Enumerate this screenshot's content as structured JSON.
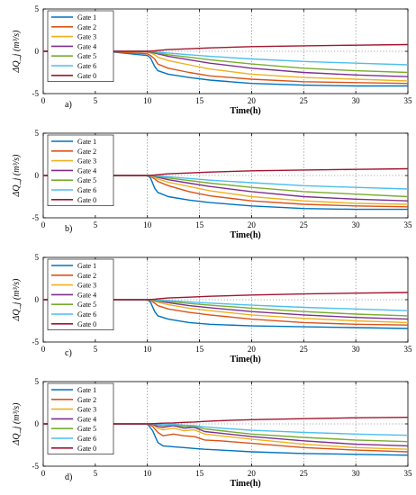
{
  "chart_data": [
    {
      "type": "line",
      "panel_label": "a)",
      "xlabel": "Time(h)",
      "ylabel": "ΔQ_j (m³/s)",
      "xlim": [
        0,
        35
      ],
      "ylim": [
        -5,
        5
      ],
      "xticks": [
        "0",
        "5",
        "10",
        "15",
        "20",
        "25",
        "30",
        "35"
      ],
      "yticks": [
        "-5",
        "0",
        "5"
      ],
      "vgrid_x": [
        10,
        15,
        20,
        25,
        30
      ],
      "hgrid_y": [
        0
      ],
      "legend": "top-left",
      "x": [
        0,
        6,
        10,
        10.3,
        10.7,
        11,
        12,
        14,
        16,
        20,
        25,
        30,
        35
      ],
      "series": [
        {
          "name": "Gate 1",
          "color": "#0072BD",
          "values": [
            0,
            0,
            -0.5,
            -0.8,
            -1.8,
            -2.3,
            -2.7,
            -3.1,
            -3.4,
            -3.8,
            -4.0,
            -4.1,
            -4.1
          ]
        },
        {
          "name": "Gate 2",
          "color": "#D95319",
          "values": [
            0,
            0,
            -0.3,
            -0.5,
            -0.9,
            -1.5,
            -2.0,
            -2.5,
            -2.9,
            -3.3,
            -3.6,
            -3.7,
            -3.8
          ]
        },
        {
          "name": "Gate 3",
          "color": "#EDB120",
          "values": [
            0,
            0,
            -0.1,
            -0.2,
            -0.4,
            -0.7,
            -1.1,
            -1.6,
            -2.1,
            -2.7,
            -3.1,
            -3.3,
            -3.5
          ]
        },
        {
          "name": "Gate 4",
          "color": "#7E2F8E",
          "values": [
            0,
            0,
            -0.05,
            -0.1,
            -0.2,
            -0.3,
            -0.6,
            -1.0,
            -1.4,
            -2.0,
            -2.5,
            -2.8,
            -3.0
          ]
        },
        {
          "name": "Gate 5",
          "color": "#77AC30",
          "values": [
            0,
            0,
            0,
            -0.05,
            -0.1,
            -0.2,
            -0.4,
            -0.7,
            -1.0,
            -1.5,
            -2.0,
            -2.3,
            -2.5
          ]
        },
        {
          "name": "Gate 6",
          "color": "#4DBEEE",
          "values": [
            0,
            0,
            0,
            0,
            -0.05,
            -0.1,
            -0.2,
            -0.4,
            -0.6,
            -0.9,
            -1.2,
            -1.4,
            -1.6
          ]
        },
        {
          "name": "Gate 0",
          "color": "#A2142F",
          "values": [
            0,
            0,
            0,
            0.02,
            0.05,
            0.1,
            0.2,
            0.3,
            0.4,
            0.55,
            0.65,
            0.72,
            0.8
          ]
        }
      ]
    },
    {
      "type": "line",
      "panel_label": "b)",
      "xlabel": "Time(h)",
      "ylabel": "ΔQ_j (m³/s)",
      "xlim": [
        0,
        35
      ],
      "ylim": [
        -5,
        5
      ],
      "xticks": [
        "0",
        "5",
        "10",
        "15",
        "20",
        "25",
        "30",
        "35"
      ],
      "yticks": [
        "-5",
        "0",
        "5"
      ],
      "vgrid_x": [
        10,
        15,
        20,
        25,
        30
      ],
      "hgrid_y": [
        0
      ],
      "legend": "top-left",
      "x": [
        0,
        6,
        10,
        10.3,
        10.7,
        11,
        12,
        14,
        16,
        20,
        25,
        30,
        35
      ],
      "series": [
        {
          "name": "Gate 1",
          "color": "#0072BD",
          "values": [
            0,
            0,
            0,
            -0.3,
            -1.5,
            -2.0,
            -2.5,
            -2.9,
            -3.2,
            -3.6,
            -3.9,
            -4.0,
            -4.0
          ]
        },
        {
          "name": "Gate 2",
          "color": "#D95319",
          "values": [
            0,
            0,
            0,
            -0.1,
            -0.4,
            -0.7,
            -1.2,
            -1.9,
            -2.4,
            -3.0,
            -3.4,
            -3.6,
            -3.7
          ]
        },
        {
          "name": "Gate 3",
          "color": "#EDB120",
          "values": [
            0,
            0,
            0,
            -0.05,
            -0.2,
            -0.4,
            -0.8,
            -1.3,
            -1.8,
            -2.5,
            -3.0,
            -3.3,
            -3.4
          ]
        },
        {
          "name": "Gate 4",
          "color": "#7E2F8E",
          "values": [
            0,
            0,
            0,
            0,
            -0.1,
            -0.2,
            -0.5,
            -0.9,
            -1.3,
            -1.9,
            -2.5,
            -2.8,
            -3.0
          ]
        },
        {
          "name": "Gate 5",
          "color": "#77AC30",
          "values": [
            0,
            0,
            0,
            0,
            -0.05,
            -0.1,
            -0.3,
            -0.6,
            -0.9,
            -1.4,
            -1.9,
            -2.2,
            -2.5
          ]
        },
        {
          "name": "Gate 6",
          "color": "#4DBEEE",
          "values": [
            0,
            0,
            0,
            0,
            0,
            -0.05,
            -0.15,
            -0.35,
            -0.55,
            -0.85,
            -1.2,
            -1.4,
            -1.6
          ]
        },
        {
          "name": "Gate 0",
          "color": "#A2142F",
          "values": [
            0,
            0,
            0,
            0.02,
            0.05,
            0.1,
            0.2,
            0.3,
            0.4,
            0.55,
            0.65,
            0.72,
            0.8
          ]
        }
      ]
    },
    {
      "type": "line",
      "panel_label": "c)",
      "xlabel": "Time(h)",
      "ylabel": "ΔQ_j (m³/s)",
      "xlim": [
        0,
        35
      ],
      "ylim": [
        -5,
        5
      ],
      "xticks": [
        "0",
        "5",
        "10",
        "15",
        "20",
        "25",
        "30",
        "35"
      ],
      "yticks": [
        "-5",
        "0",
        "5"
      ],
      "vgrid_x": [
        10,
        15,
        20,
        25,
        30
      ],
      "hgrid_y": [
        0
      ],
      "legend": "top-left",
      "x": [
        0,
        6,
        10,
        10.3,
        10.7,
        11,
        12,
        14,
        16,
        20,
        25,
        30,
        35
      ],
      "series": [
        {
          "name": "Gate 1",
          "color": "#0072BD",
          "values": [
            0,
            0,
            0,
            -0.3,
            -1.4,
            -1.9,
            -2.3,
            -2.7,
            -2.9,
            -3.1,
            -3.2,
            -3.3,
            -3.4
          ]
        },
        {
          "name": "Gate 2",
          "color": "#D95319",
          "values": [
            0,
            0,
            0,
            -0.1,
            -0.4,
            -0.7,
            -1.1,
            -1.5,
            -1.8,
            -2.3,
            -2.7,
            -2.9,
            -3.0
          ]
        },
        {
          "name": "Gate 3",
          "color": "#EDB120",
          "values": [
            0,
            0,
            0,
            -0.05,
            -0.2,
            -0.3,
            -0.6,
            -1.0,
            -1.3,
            -1.8,
            -2.2,
            -2.5,
            -2.7
          ]
        },
        {
          "name": "Gate 4",
          "color": "#7E2F8E",
          "values": [
            0,
            0,
            0,
            0,
            -0.1,
            -0.15,
            -0.35,
            -0.7,
            -0.95,
            -1.4,
            -1.8,
            -2.1,
            -2.3
          ]
        },
        {
          "name": "Gate 5",
          "color": "#77AC30",
          "values": [
            0,
            0,
            0,
            0,
            -0.05,
            -0.1,
            -0.2,
            -0.45,
            -0.65,
            -1.0,
            -1.4,
            -1.7,
            -1.9
          ]
        },
        {
          "name": "Gate 6",
          "color": "#4DBEEE",
          "values": [
            0,
            0,
            0,
            0,
            0,
            -0.05,
            -0.1,
            -0.25,
            -0.4,
            -0.65,
            -0.9,
            -1.1,
            -1.3
          ]
        },
        {
          "name": "Gate 0",
          "color": "#A2142F",
          "values": [
            0,
            0,
            0,
            0.02,
            0.05,
            0.1,
            0.2,
            0.3,
            0.4,
            0.55,
            0.68,
            0.78,
            0.85
          ]
        }
      ]
    },
    {
      "type": "line",
      "panel_label": "d)",
      "xlabel": "Time(h)",
      "ylabel": "ΔQ_j (m³/s)",
      "xlim": [
        0,
        35
      ],
      "ylim": [
        -5,
        5
      ],
      "xticks": [
        "0",
        "5",
        "10",
        "15",
        "20",
        "25",
        "30",
        "35"
      ],
      "yticks": [
        "-5",
        "0",
        "5"
      ],
      "vgrid_x": [
        10,
        15,
        20,
        25,
        30
      ],
      "hgrid_y": [
        0
      ],
      "legend": "top-left",
      "x": [
        0,
        6,
        10,
        10.5,
        11,
        11.5,
        12.5,
        13.5,
        14.5,
        15.5,
        17,
        20,
        25,
        30,
        35
      ],
      "series": [
        {
          "name": "Gate 1",
          "color": "#0072BD",
          "values": [
            0,
            0,
            0,
            -0.8,
            -2.2,
            -2.6,
            -2.7,
            -2.8,
            -2.9,
            -3.0,
            -3.1,
            -3.3,
            -3.5,
            -3.6,
            -3.7
          ]
        },
        {
          "name": "Gate 2",
          "color": "#D95319",
          "values": [
            0,
            0,
            0,
            -0.3,
            -1.0,
            -1.4,
            -1.2,
            -1.4,
            -1.5,
            -1.9,
            -2.0,
            -2.3,
            -2.8,
            -3.1,
            -3.3
          ]
        },
        {
          "name": "Gate 3",
          "color": "#EDB120",
          "values": [
            0,
            0,
            0,
            -0.1,
            -0.5,
            -0.7,
            -0.5,
            -0.8,
            -0.7,
            -1.2,
            -1.4,
            -1.8,
            -2.4,
            -2.8,
            -3.0
          ]
        },
        {
          "name": "Gate 4",
          "color": "#7E2F8E",
          "values": [
            0,
            0,
            0,
            -0.05,
            -0.3,
            -0.4,
            -0.2,
            -0.5,
            -0.4,
            -0.9,
            -1.1,
            -1.5,
            -2.0,
            -2.4,
            -2.6
          ]
        },
        {
          "name": "Gate 5",
          "color": "#77AC30",
          "values": [
            0,
            0,
            0,
            0,
            -0.1,
            -0.2,
            -0.1,
            -0.3,
            -0.3,
            -0.6,
            -0.8,
            -1.2,
            -1.6,
            -1.9,
            -2.1
          ]
        },
        {
          "name": "Gate 6",
          "color": "#4DBEEE",
          "values": [
            0,
            0,
            0,
            0,
            -0.05,
            -0.1,
            -0.05,
            -0.15,
            -0.2,
            -0.35,
            -0.5,
            -0.75,
            -1.0,
            -1.2,
            -1.35
          ]
        },
        {
          "name": "Gate 0",
          "color": "#A2142F",
          "values": [
            0,
            0,
            0,
            0.02,
            0.05,
            0.08,
            0.12,
            0.18,
            0.22,
            0.3,
            0.38,
            0.5,
            0.62,
            0.72,
            0.78
          ]
        }
      ]
    }
  ]
}
